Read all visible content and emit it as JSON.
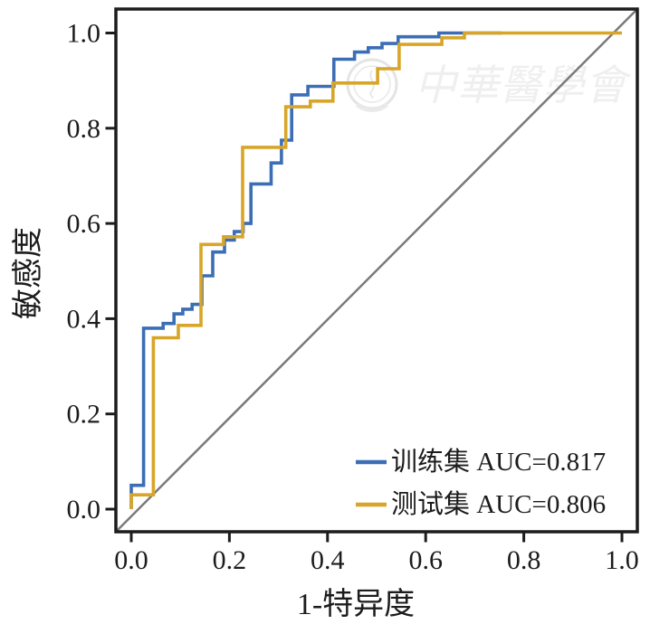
{
  "watermark": {
    "text": "中華醫學會"
  },
  "chart_data": {
    "type": "line",
    "subtype": "roc-step-curves",
    "title": "",
    "xlabel": "1-特异度",
    "ylabel": "敏感度",
    "xlim": [
      0,
      1
    ],
    "ylim": [
      0,
      1
    ],
    "x_ticks": [
      "0.0",
      "0.2",
      "0.4",
      "0.6",
      "0.8",
      "1.0"
    ],
    "y_ticks": [
      "0.0",
      "0.2",
      "0.4",
      "0.6",
      "0.8",
      "1.0"
    ],
    "grid": false,
    "legend_position": "bottom-right",
    "diagonal_reference": {
      "present": true,
      "color": "#7a7a7a"
    },
    "frame_color": "#1c1c1c",
    "series": [
      {
        "id": "train",
        "name": "训练集",
        "auc": 0.817,
        "legend_label": "训练集 AUC=0.817",
        "color": "#3b6eb5",
        "points": [
          [
            0,
            0
          ],
          [
            0,
            0.05
          ],
          [
            0.025,
            0.05
          ],
          [
            0.025,
            0.38
          ],
          [
            0.065,
            0.38
          ],
          [
            0.065,
            0.39
          ],
          [
            0.087,
            0.39
          ],
          [
            0.087,
            0.41
          ],
          [
            0.105,
            0.41
          ],
          [
            0.105,
            0.42
          ],
          [
            0.124,
            0.42
          ],
          [
            0.124,
            0.43
          ],
          [
            0.144,
            0.43
          ],
          [
            0.144,
            0.49
          ],
          [
            0.166,
            0.49
          ],
          [
            0.166,
            0.54
          ],
          [
            0.19,
            0.54
          ],
          [
            0.19,
            0.565
          ],
          [
            0.21,
            0.565
          ],
          [
            0.21,
            0.583
          ],
          [
            0.228,
            0.583
          ],
          [
            0.228,
            0.6
          ],
          [
            0.244,
            0.6
          ],
          [
            0.244,
            0.683
          ],
          [
            0.285,
            0.683
          ],
          [
            0.285,
            0.727
          ],
          [
            0.306,
            0.727
          ],
          [
            0.306,
            0.775
          ],
          [
            0.327,
            0.775
          ],
          [
            0.327,
            0.87
          ],
          [
            0.36,
            0.87
          ],
          [
            0.36,
            0.888
          ],
          [
            0.413,
            0.888
          ],
          [
            0.413,
            0.945
          ],
          [
            0.455,
            0.945
          ],
          [
            0.455,
            0.96
          ],
          [
            0.483,
            0.96
          ],
          [
            0.483,
            0.969
          ],
          [
            0.511,
            0.969
          ],
          [
            0.511,
            0.978
          ],
          [
            0.544,
            0.978
          ],
          [
            0.544,
            0.992
          ],
          [
            0.627,
            0.992
          ],
          [
            0.627,
            1
          ],
          [
            0.755,
            1
          ]
        ]
      },
      {
        "id": "test",
        "name": "测试集",
        "auc": 0.806,
        "legend_label": "测试集 AUC=0.806",
        "color": "#d8a528",
        "points": [
          [
            0,
            0
          ],
          [
            0,
            0.03
          ],
          [
            0.045,
            0.03
          ],
          [
            0.045,
            0.36
          ],
          [
            0.096,
            0.36
          ],
          [
            0.096,
            0.386
          ],
          [
            0.142,
            0.386
          ],
          [
            0.142,
            0.556
          ],
          [
            0.188,
            0.556
          ],
          [
            0.188,
            0.572
          ],
          [
            0.227,
            0.572
          ],
          [
            0.227,
            0.76
          ],
          [
            0.315,
            0.76
          ],
          [
            0.315,
            0.845
          ],
          [
            0.365,
            0.845
          ],
          [
            0.365,
            0.857
          ],
          [
            0.411,
            0.857
          ],
          [
            0.411,
            0.895
          ],
          [
            0.502,
            0.895
          ],
          [
            0.502,
            0.925
          ],
          [
            0.546,
            0.925
          ],
          [
            0.546,
            0.976
          ],
          [
            0.633,
            0.976
          ],
          [
            0.633,
            0.99
          ],
          [
            0.679,
            0.99
          ],
          [
            0.679,
            1
          ],
          [
            1,
            1
          ]
        ]
      }
    ]
  }
}
